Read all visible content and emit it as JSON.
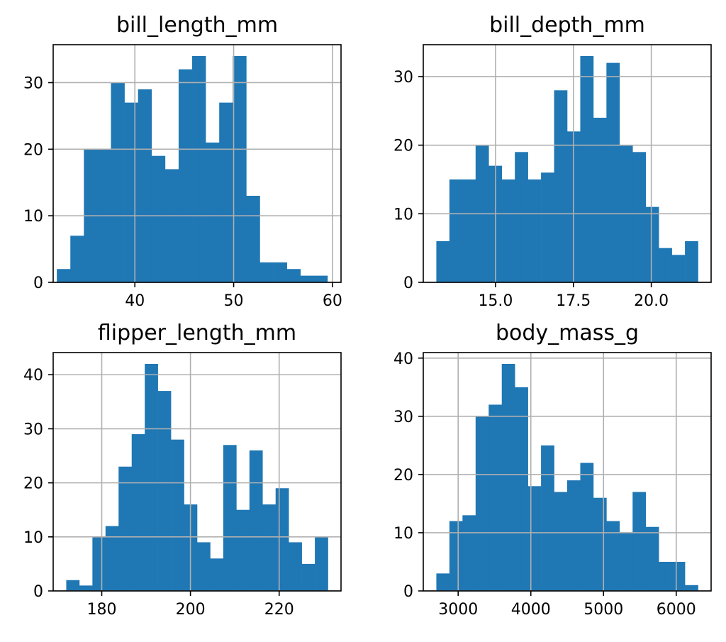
{
  "colors": {
    "bar": "#1f77b4",
    "grid": "#b0b0b0",
    "axis": "#000000"
  },
  "chart_data": [
    {
      "type": "bar",
      "title": "bill_length_mm",
      "bin_edges": [
        32.1,
        33.47,
        34.84,
        36.21,
        37.58,
        38.95,
        40.32,
        41.69,
        43.06,
        44.43,
        45.8,
        47.17,
        48.54,
        49.91,
        51.28,
        52.65,
        54.02,
        55.39,
        56.76,
        58.13,
        59.5
      ],
      "values": [
        2,
        7,
        20,
        20,
        30,
        27,
        29,
        19,
        17,
        32,
        34,
        21,
        27,
        34,
        13,
        3,
        3,
        2,
        1,
        1
      ],
      "xlim": [
        31.73,
        60.87
      ],
      "ylim": [
        0,
        35.7
      ],
      "xticks": [
        40,
        50,
        60
      ],
      "xtick_labels": [
        "40",
        "50",
        "60"
      ],
      "yticks": [
        0,
        10,
        20,
        30
      ],
      "ytick_labels": [
        "0",
        "10",
        "20",
        "30"
      ],
      "grid": true
    },
    {
      "type": "bar",
      "title": "bill_depth_mm",
      "bin_edges": [
        13.1,
        13.52,
        13.94,
        14.36,
        14.78,
        15.2,
        15.62,
        16.04,
        16.46,
        16.88,
        17.3,
        17.72,
        18.14,
        18.56,
        18.98,
        19.4,
        19.82,
        20.24,
        20.66,
        21.08,
        21.5
      ],
      "values": [
        6,
        15,
        15,
        20,
        17,
        15,
        19,
        15,
        16,
        28,
        22,
        33,
        24,
        32,
        20,
        19,
        11,
        5,
        4,
        6
      ],
      "xlim": [
        12.68,
        21.92
      ],
      "ylim": [
        0,
        34.65
      ],
      "xticks": [
        15,
        17.5,
        20
      ],
      "xtick_labels": [
        "15.0",
        "17.5",
        "20.0"
      ],
      "yticks": [
        0,
        10,
        20,
        30
      ],
      "ytick_labels": [
        "0",
        "10",
        "20",
        "30"
      ],
      "grid": true
    },
    {
      "type": "bar",
      "title": "flipper_length_mm",
      "bin_edges": [
        172,
        174.95,
        177.9,
        180.85,
        183.8,
        186.75,
        189.7,
        192.65,
        195.6,
        198.55,
        201.5,
        204.45,
        207.4,
        210.35,
        213.3,
        216.25,
        219.2,
        222.15,
        225.1,
        228.05,
        231
      ],
      "values": [
        2,
        1,
        10,
        12,
        23,
        29,
        42,
        37,
        28,
        16,
        9,
        6,
        27,
        15,
        26,
        16,
        19,
        9,
        5,
        10
      ],
      "xlim": [
        169.05,
        233.95
      ],
      "ylim": [
        0,
        44.1
      ],
      "xticks": [
        180,
        200,
        220
      ],
      "xtick_labels": [
        "180",
        "200",
        "220"
      ],
      "yticks": [
        0,
        10,
        20,
        30,
        40
      ],
      "ytick_labels": [
        "0",
        "10",
        "20",
        "30",
        "40"
      ],
      "grid": true
    },
    {
      "type": "bar",
      "title": "body_mass_g",
      "bin_edges": [
        2700,
        2880,
        3060,
        3240,
        3420,
        3600,
        3780,
        3960,
        4140,
        4320,
        4500,
        4680,
        4860,
        5040,
        5220,
        5400,
        5580,
        5760,
        5940,
        6120,
        6300
      ],
      "values": [
        3,
        12,
        13,
        30,
        32,
        39,
        35,
        18,
        25,
        17,
        19,
        22,
        16,
        12,
        10,
        17,
        11,
        5,
        5,
        1
      ],
      "xlim": [
        2520,
        6480
      ],
      "ylim": [
        0,
        40.95
      ],
      "xticks": [
        3000,
        4000,
        5000,
        6000
      ],
      "xtick_labels": [
        "3000",
        "4000",
        "5000",
        "6000"
      ],
      "yticks": [
        0,
        10,
        20,
        30,
        40
      ],
      "ytick_labels": [
        "0",
        "10",
        "20",
        "30",
        "40"
      ],
      "grid": true
    }
  ]
}
